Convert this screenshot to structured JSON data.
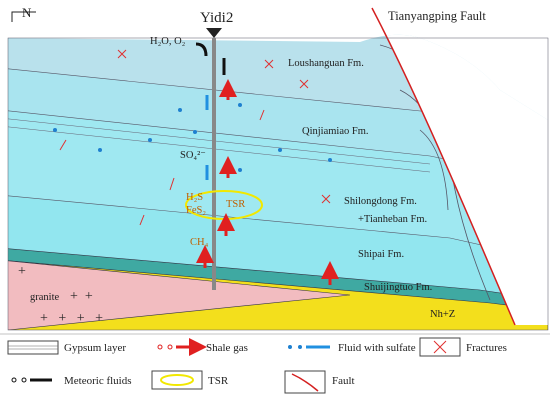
{
  "header": {
    "north": "N",
    "well": "Yidi2",
    "fault": "Tianyangping Fault"
  },
  "section": {
    "surface_fluids": "H₂O, O₂",
    "formations": [
      "Loushanguan Fm.",
      "Qinjiamiao Fm.",
      "Shilongdong Fm.",
      "+Tianheban Fm.",
      "Shipai Fm.",
      "Shuijingtuo Fm.",
      "Nh+Z",
      "granite"
    ],
    "species": {
      "sulfate": "SO₄²⁻",
      "h2s": "H₂S",
      "fes2": "FeS₂",
      "tsr": "TSR",
      "ch4": "CH₄"
    }
  },
  "legend": [
    "Gypsum layer",
    "Shale gas",
    "Fluid with sulfate",
    "Fractures",
    "Meteoric fluids",
    "TSR",
    "Fault"
  ]
}
